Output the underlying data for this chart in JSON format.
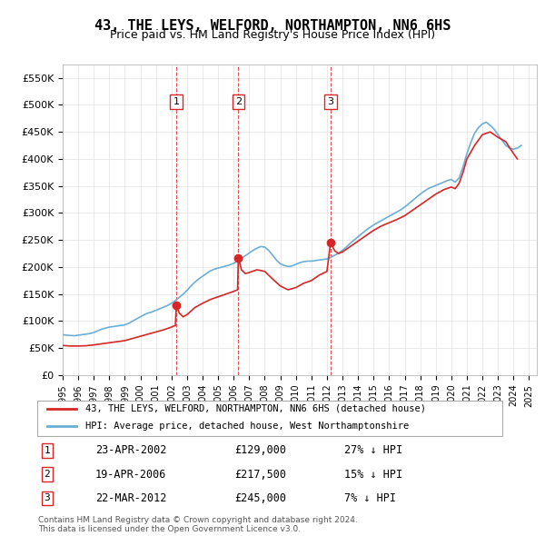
{
  "title": "43, THE LEYS, WELFORD, NORTHAMPTON, NN6 6HS",
  "subtitle": "Price paid vs. HM Land Registry's House Price Index (HPI)",
  "title_fontsize": 11,
  "subtitle_fontsize": 9,
  "ylim": [
    0,
    575000
  ],
  "xlim_start": 1995.0,
  "xlim_end": 2025.5,
  "yticks": [
    0,
    50000,
    100000,
    150000,
    200000,
    250000,
    300000,
    350000,
    400000,
    450000,
    500000,
    550000
  ],
  "ytick_labels": [
    "£0",
    "£50K",
    "£100K",
    "£150K",
    "£200K",
    "£250K",
    "£300K",
    "£350K",
    "£400K",
    "£450K",
    "£500K",
    "£550K"
  ],
  "sale_dates": [
    2002.31,
    2006.3,
    2012.23
  ],
  "sale_prices": [
    129000,
    217500,
    245000
  ],
  "sale_labels": [
    "1",
    "2",
    "3"
  ],
  "sale_date_strs": [
    "23-APR-2002",
    "19-APR-2006",
    "22-MAR-2012"
  ],
  "sale_pct": [
    "27%",
    "15%",
    "7%"
  ],
  "hpi_color": "#6baed6",
  "property_color": "#d62728",
  "vline_color": "#d62728",
  "legend_property_label": "43, THE LEYS, WELFORD, NORTHAMPTON, NN6 6HS (detached house)",
  "legend_hpi_label": "HPI: Average price, detached house, West Northamptonshire",
  "footnote": "Contains HM Land Registry data © Crown copyright and database right 2024.\nThis data is licensed under the Open Government Licence v3.0.",
  "hpi_x": [
    1995.0,
    1995.25,
    1995.5,
    1995.75,
    1996.0,
    1996.25,
    1996.5,
    1996.75,
    1997.0,
    1997.25,
    1997.5,
    1997.75,
    1998.0,
    1998.25,
    1998.5,
    1998.75,
    1999.0,
    1999.25,
    1999.5,
    1999.75,
    2000.0,
    2000.25,
    2000.5,
    2000.75,
    2001.0,
    2001.25,
    2001.5,
    2001.75,
    2002.0,
    2002.25,
    2002.5,
    2002.75,
    2003.0,
    2003.25,
    2003.5,
    2003.75,
    2004.0,
    2004.25,
    2004.5,
    2004.75,
    2005.0,
    2005.25,
    2005.5,
    2005.75,
    2006.0,
    2006.25,
    2006.5,
    2006.75,
    2007.0,
    2007.25,
    2007.5,
    2007.75,
    2008.0,
    2008.25,
    2008.5,
    2008.75,
    2009.0,
    2009.25,
    2009.5,
    2009.75,
    2010.0,
    2010.25,
    2010.5,
    2010.75,
    2011.0,
    2011.25,
    2011.5,
    2011.75,
    2012.0,
    2012.25,
    2012.5,
    2012.75,
    2013.0,
    2013.25,
    2013.5,
    2013.75,
    2014.0,
    2014.25,
    2014.5,
    2014.75,
    2015.0,
    2015.25,
    2015.5,
    2015.75,
    2016.0,
    2016.25,
    2016.5,
    2016.75,
    2017.0,
    2017.25,
    2017.5,
    2017.75,
    2018.0,
    2018.25,
    2018.5,
    2018.75,
    2019.0,
    2019.25,
    2019.5,
    2019.75,
    2020.0,
    2020.25,
    2020.5,
    2020.75,
    2021.0,
    2021.25,
    2021.5,
    2021.75,
    2022.0,
    2022.25,
    2022.5,
    2022.75,
    2023.0,
    2023.25,
    2023.5,
    2023.75,
    2024.0,
    2024.25,
    2024.5
  ],
  "hpi_y": [
    75000,
    74000,
    73500,
    73000,
    74000,
    75000,
    76000,
    77000,
    79000,
    82000,
    85000,
    87000,
    89000,
    90000,
    91000,
    92000,
    93000,
    96000,
    100000,
    104000,
    108000,
    112000,
    115000,
    117000,
    120000,
    123000,
    126000,
    129000,
    133000,
    138000,
    144000,
    150000,
    157000,
    165000,
    172000,
    178000,
    183000,
    188000,
    193000,
    196000,
    198000,
    200000,
    202000,
    204000,
    207000,
    211000,
    216000,
    221000,
    226000,
    231000,
    235000,
    238000,
    237000,
    231000,
    222000,
    213000,
    206000,
    203000,
    201000,
    202000,
    205000,
    208000,
    210000,
    211000,
    211000,
    212000,
    213000,
    214000,
    215000,
    218000,
    222000,
    226000,
    231000,
    237000,
    244000,
    250000,
    256000,
    262000,
    268000,
    273000,
    278000,
    282000,
    286000,
    290000,
    294000,
    298000,
    302000,
    306000,
    311000,
    317000,
    323000,
    329000,
    335000,
    340000,
    345000,
    348000,
    351000,
    354000,
    357000,
    360000,
    362000,
    357000,
    365000,
    385000,
    410000,
    430000,
    448000,
    458000,
    465000,
    468000,
    462000,
    455000,
    445000,
    435000,
    425000,
    420000,
    418000,
    420000,
    425000
  ],
  "prop_x": [
    1995.0,
    1995.5,
    1996.0,
    1996.5,
    1997.0,
    1997.5,
    1998.0,
    1998.5,
    1999.0,
    1999.5,
    2000.0,
    2000.5,
    2001.0,
    2001.5,
    2002.0,
    2002.25,
    2002.31,
    2002.5,
    2002.75,
    2003.0,
    2003.5,
    2004.0,
    2004.5,
    2005.0,
    2005.5,
    2006.0,
    2006.25,
    2006.3,
    2006.5,
    2006.75,
    2007.0,
    2007.5,
    2008.0,
    2008.5,
    2009.0,
    2009.5,
    2010.0,
    2010.5,
    2011.0,
    2011.5,
    2012.0,
    2012.23,
    2012.5,
    2012.75,
    2013.0,
    2013.5,
    2014.0,
    2014.5,
    2015.0,
    2015.5,
    2016.0,
    2016.5,
    2017.0,
    2017.5,
    2018.0,
    2018.5,
    2019.0,
    2019.5,
    2020.0,
    2020.25,
    2020.5,
    2020.75,
    2021.0,
    2021.5,
    2022.0,
    2022.5,
    2023.0,
    2023.5,
    2024.0,
    2024.25
  ],
  "prop_y": [
    55000,
    54000,
    54000,
    54500,
    56000,
    58000,
    60000,
    62000,
    64000,
    68000,
    72000,
    76000,
    80000,
    84000,
    89000,
    92000,
    129000,
    115000,
    108000,
    112000,
    125000,
    133000,
    140000,
    145000,
    150000,
    155000,
    158000,
    217500,
    195000,
    188000,
    190000,
    195000,
    192000,
    178000,
    165000,
    158000,
    162000,
    170000,
    175000,
    185000,
    192000,
    245000,
    230000,
    225000,
    228000,
    238000,
    248000,
    258000,
    268000,
    276000,
    282000,
    288000,
    295000,
    305000,
    315000,
    325000,
    335000,
    343000,
    348000,
    345000,
    355000,
    375000,
    400000,
    425000,
    445000,
    450000,
    440000,
    432000,
    410000,
    400000
  ]
}
